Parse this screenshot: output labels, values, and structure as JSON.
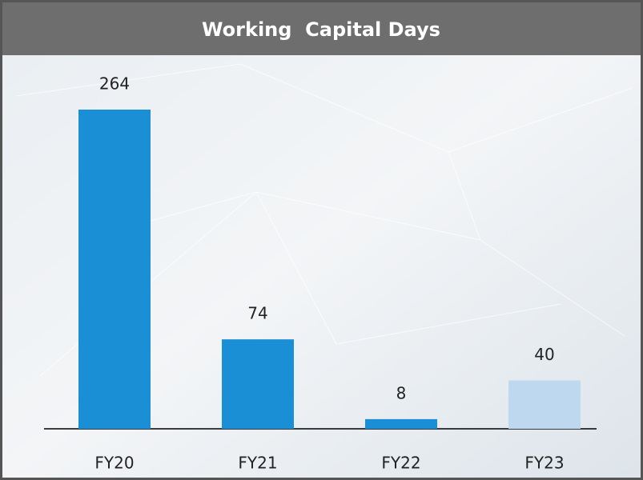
{
  "chart_data": {
    "type": "bar",
    "title": "Working  Capital Days",
    "categories": [
      "FY20",
      "FY21",
      "FY22",
      "FY23"
    ],
    "values": [
      264,
      74,
      8,
      40
    ],
    "colors": [
      "#1a8fd6",
      "#1a8fd6",
      "#1a8fd6",
      "#bdd8ef"
    ],
    "data_labels": true
  }
}
